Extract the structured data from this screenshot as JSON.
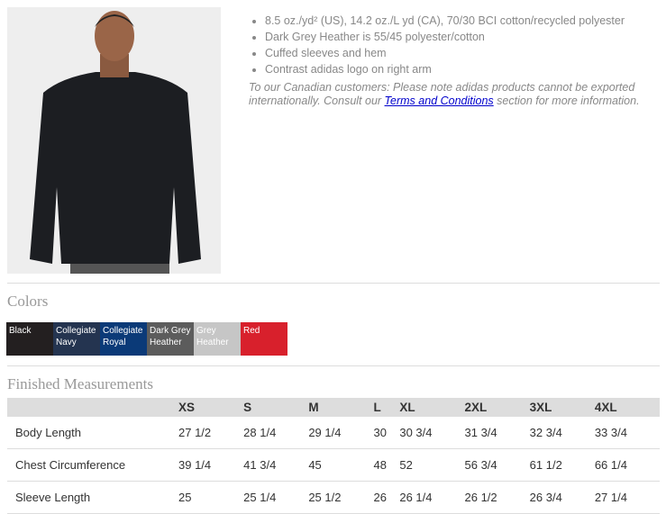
{
  "product": {
    "features": [
      "8.5 oz./yd² (US), 14.2 oz./L yd (CA), 70/30 BCI cotton/recycled polyester",
      "Dark Grey Heather is 55/45 polyester/cotton",
      "Cuffed sleeves and hem",
      "Contrast adidas logo on right arm"
    ],
    "note_before": "To our Canadian customers: Please note adidas products cannot be exported internationally. Consult our ",
    "note_link": "Terms and Conditions",
    "note_after": " section for more information."
  },
  "colors": {
    "title": "Colors",
    "swatches": [
      {
        "name": "Black",
        "hex": "#231f20"
      },
      {
        "name": "Collegiate Navy",
        "hex": "#243450"
      },
      {
        "name": "Collegiate Royal",
        "hex": "#0b3a78"
      },
      {
        "name": "Dark Grey Heather",
        "hex": "#5c5c5c"
      },
      {
        "name": "Grey Heather",
        "hex": "#c6c6c6"
      },
      {
        "name": "Red",
        "hex": "#d8202c"
      }
    ]
  },
  "measurements": {
    "title": "Finished Measurements",
    "headers": [
      "",
      "XS",
      "S",
      "M",
      "L",
      "XL",
      "2XL",
      "3XL",
      "4XL"
    ],
    "rows": [
      [
        "Body Length",
        "27 1/2",
        "28 1/4",
        "29 1/4",
        "30",
        "30 3/4",
        "31 3/4",
        "32 3/4",
        "33 3/4"
      ],
      [
        "Chest Circumference",
        "39 1/4",
        "41 3/4",
        "45",
        "48",
        "52",
        "56 3/4",
        "61 1/2",
        "66 1/4"
      ],
      [
        "Sleeve Length",
        "25",
        "25 1/4",
        "25 1/2",
        "26",
        "26 1/4",
        "26 1/2",
        "26 3/4",
        "27 1/4"
      ]
    ]
  }
}
